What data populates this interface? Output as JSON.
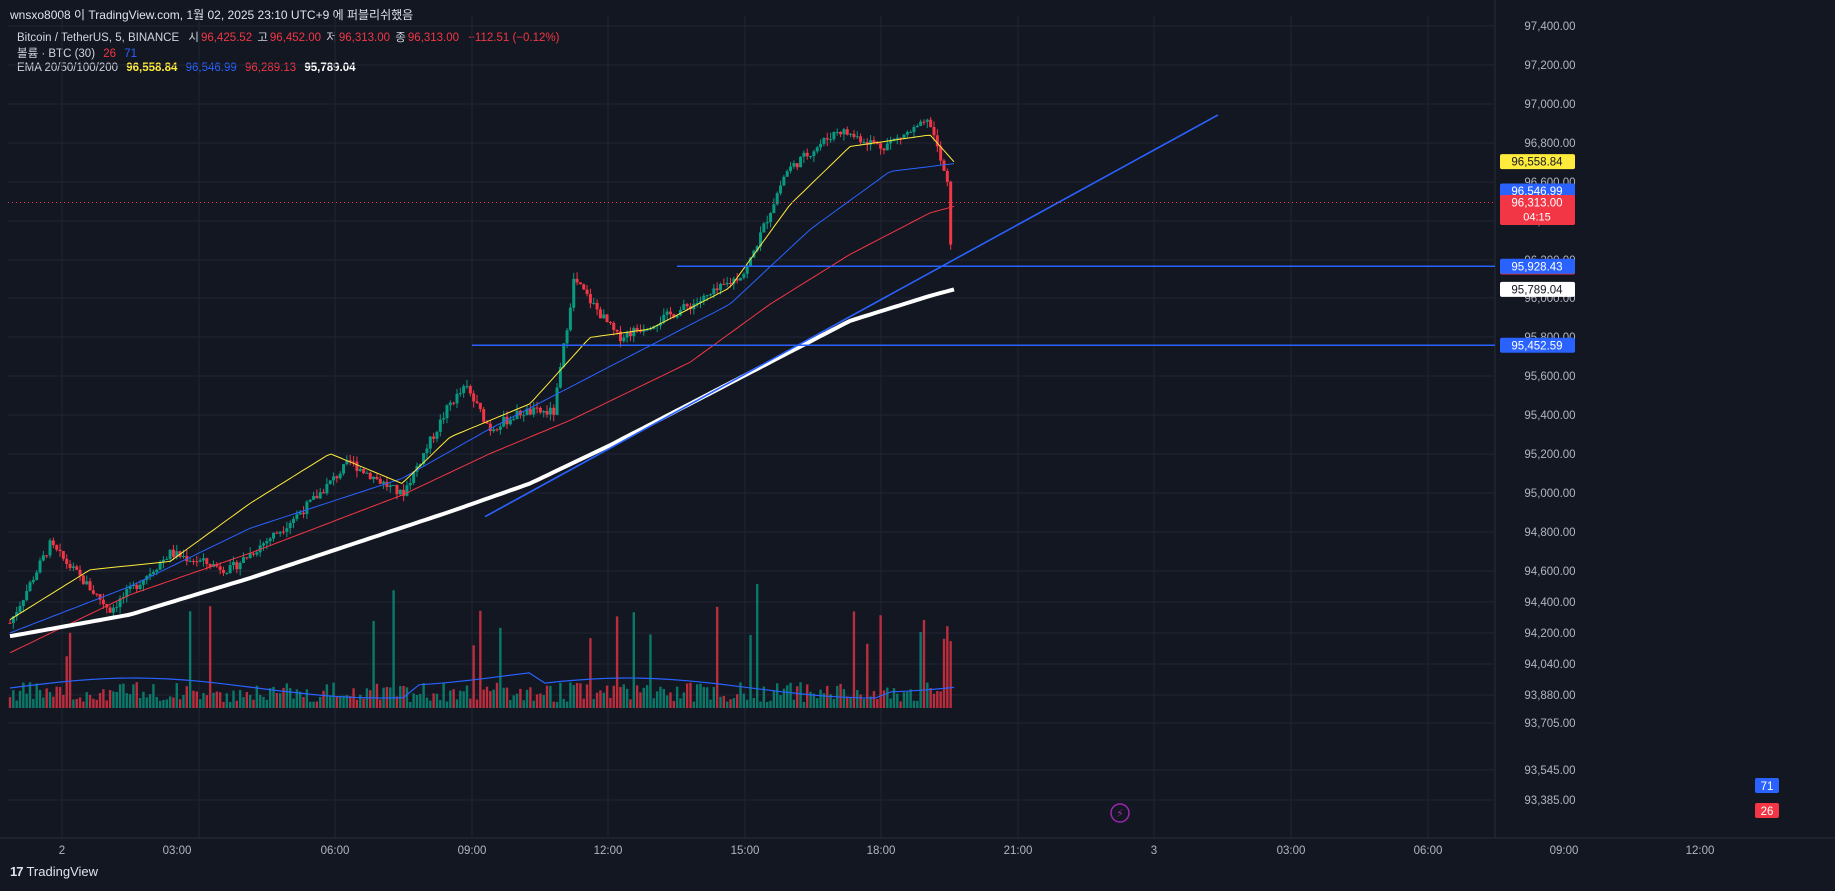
{
  "header": {
    "caption": "wnsxo8008 이 TradingView.com, 1월 02, 2025 23:10 UTC+9 에 퍼블리쉬했음"
  },
  "legend": {
    "symbol": "Bitcoin / TetherUS, 5, BINANCE",
    "open_label": "시",
    "open_value": "96,425.52",
    "high_label": "고",
    "high_value": "96,452.00",
    "low_label": "저",
    "low_value": "96,313.00",
    "close_label": "종",
    "close_value": "96,313.00",
    "change": "−112.51 (−0.12%)",
    "volume_label": "볼륨 · BTC (30)",
    "volume_value": "26",
    "volume_ma": "71",
    "ema_label": "EMA 20/50/100/200",
    "ema20": "96,558.84",
    "ema50": "96,546.99",
    "ema100": "96,289.13",
    "ema200": "95,789.04"
  },
  "colors": {
    "background": "#131722",
    "grid": "#1f2433",
    "up": "#089981",
    "down": "#f23645",
    "ema20": "#ffeb3b",
    "ema50": "#2962ff",
    "ema100": "#f23645",
    "ema200": "#ffffff",
    "trendline": "#2962ff",
    "axis_text": "#b2b5be"
  },
  "footer": {
    "brand": "TradingView",
    "logo_mark": "17"
  },
  "chart_data": {
    "type": "candlestick",
    "symbol": "Bitcoin / TetherUS",
    "interval": "5",
    "exchange": "BINANCE",
    "price_axis_ticks": [
      "97,400.00",
      "97,200.00",
      "97,000.00",
      "96,800.00",
      "96,600.00",
      "96,400.00",
      "96,200.00",
      "96,000.00",
      "95,800.00",
      "95,600.00",
      "95,400.00",
      "95,200.00",
      "95,000.00",
      "94,800.00",
      "94,600.00",
      "94,400.00",
      "94,200.00",
      "94,040.00",
      "93,880.00",
      "93,705.00",
      "93,545.00",
      "93,385.00"
    ],
    "time_axis_ticks": [
      "2",
      "03:00",
      "06:00",
      "09:00",
      "12:00",
      "15:00",
      "18:00",
      "21:00",
      "3",
      "03:00",
      "06:00",
      "09:00",
      "12:00"
    ],
    "last_price": "96,313.00",
    "countdown": "04:15",
    "price_labels": {
      "ema20": "96,558.84",
      "ema50": "96,546.99",
      "ema100": "96,289.13",
      "ema200": "95,789.04",
      "hline_upper": "95,928.43",
      "hline_lower": "95,452.59",
      "vol_ma": "71",
      "vol_last": "26"
    },
    "horizontal_lines": [
      95928.43,
      95452.59
    ],
    "trendline": {
      "from": {
        "time": "09:15",
        "price": 94420
      },
      "to": {
        "time": "01:00+1",
        "price": 96840
      }
    },
    "path_anchors": [
      {
        "t": 0,
        "p": 93780
      },
      {
        "t": 1,
        "p": 94250
      },
      {
        "t": 2.5,
        "p": 93860
      },
      {
        "t": 4,
        "p": 94200
      },
      {
        "t": 5.5,
        "p": 94100
      },
      {
        "t": 6.8,
        "p": 94350
      },
      {
        "t": 7.5,
        "p": 94500
      },
      {
        "t": 8.5,
        "p": 94750
      },
      {
        "t": 9.8,
        "p": 94550
      },
      {
        "t": 11,
        "p": 95100
      },
      {
        "t": 11.4,
        "p": 95200
      },
      {
        "t": 12,
        "p": 94950
      },
      {
        "t": 12.8,
        "p": 95050
      },
      {
        "t": 13.6,
        "p": 95050
      },
      {
        "t": 14.1,
        "p": 95850
      },
      {
        "t": 15.2,
        "p": 95500
      },
      {
        "t": 16.2,
        "p": 95600
      },
      {
        "t": 17.5,
        "p": 95750
      },
      {
        "t": 18.4,
        "p": 95900
      },
      {
        "t": 19.4,
        "p": 96500
      },
      {
        "t": 20.7,
        "p": 96750
      },
      {
        "t": 21.8,
        "p": 96650
      },
      {
        "t": 23,
        "p": 96800
      },
      {
        "t": 23.45,
        "p": 96400
      },
      {
        "t": 23.55,
        "p": 95920
      },
      {
        "t": 23.6,
        "p": 96330
      }
    ],
    "ema20_anchors": [
      {
        "t": 0,
        "p": 93800
      },
      {
        "t": 2,
        "p": 94100
      },
      {
        "t": 4,
        "p": 94150
      },
      {
        "t": 6,
        "p": 94500
      },
      {
        "t": 8,
        "p": 94800
      },
      {
        "t": 9.8,
        "p": 94620
      },
      {
        "t": 11,
        "p": 94900
      },
      {
        "t": 13,
        "p": 95100
      },
      {
        "t": 14.5,
        "p": 95500
      },
      {
        "t": 16,
        "p": 95550
      },
      {
        "t": 18,
        "p": 95800
      },
      {
        "t": 19.5,
        "p": 96300
      },
      {
        "t": 21,
        "p": 96650
      },
      {
        "t": 23,
        "p": 96720
      },
      {
        "t": 23.6,
        "p": 96558
      }
    ],
    "ema50_anchors": [
      {
        "t": 0,
        "p": 93720
      },
      {
        "t": 3,
        "p": 94000
      },
      {
        "t": 6,
        "p": 94350
      },
      {
        "t": 9.8,
        "p": 94650
      },
      {
        "t": 12,
        "p": 94950
      },
      {
        "t": 14,
        "p": 95200
      },
      {
        "t": 16,
        "p": 95450
      },
      {
        "t": 18,
        "p": 95700
      },
      {
        "t": 20,
        "p": 96150
      },
      {
        "t": 22,
        "p": 96500
      },
      {
        "t": 23.6,
        "p": 96547
      }
    ],
    "ema100_anchors": [
      {
        "t": 0,
        "p": 93600
      },
      {
        "t": 3,
        "p": 93950
      },
      {
        "t": 6,
        "p": 94200
      },
      {
        "t": 9.8,
        "p": 94550
      },
      {
        "t": 12,
        "p": 94800
      },
      {
        "t": 14,
        "p": 95000
      },
      {
        "t": 17,
        "p": 95350
      },
      {
        "t": 19,
        "p": 95700
      },
      {
        "t": 21,
        "p": 96000
      },
      {
        "t": 23,
        "p": 96250
      },
      {
        "t": 23.6,
        "p": 96289
      }
    ],
    "ema200_anchors": [
      {
        "t": 0,
        "p": 93700
      },
      {
        "t": 3,
        "p": 93830
      },
      {
        "t": 6,
        "p": 94050
      },
      {
        "t": 9,
        "p": 94290
      },
      {
        "t": 11,
        "p": 94450
      },
      {
        "t": 13,
        "p": 94620
      },
      {
        "t": 15,
        "p": 94850
      },
      {
        "t": 17,
        "p": 95100
      },
      {
        "t": 19,
        "p": 95350
      },
      {
        "t": 21,
        "p": 95600
      },
      {
        "t": 23,
        "p": 95750
      },
      {
        "t": 23.6,
        "p": 95789
      }
    ]
  }
}
